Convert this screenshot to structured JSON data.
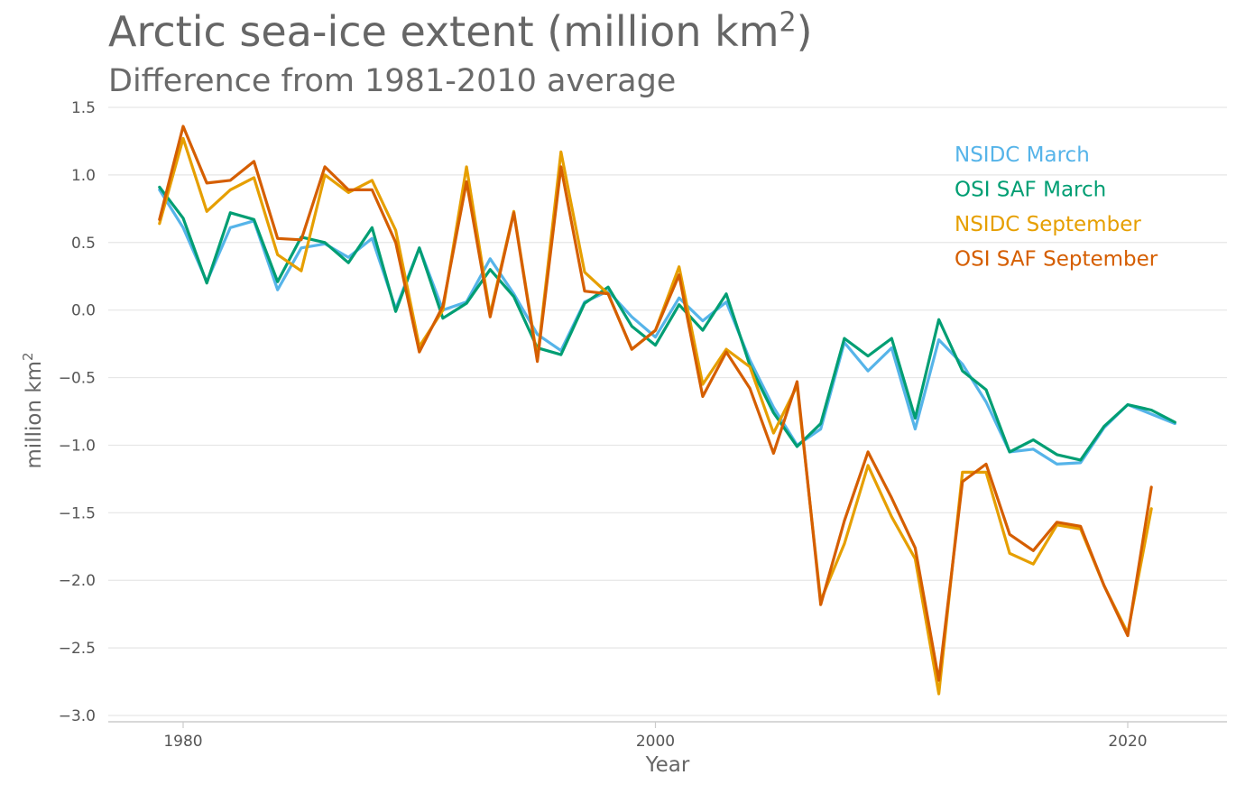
{
  "title_main": "Arctic sea-ice extent (million km",
  "title_sup": "2",
  "title_end": ")",
  "subtitle": "Difference from 1981-2010 average",
  "chart_data": {
    "type": "line",
    "title": "Arctic sea-ice extent (million km2)",
    "subtitle": "Difference from 1981-2010 average",
    "xlabel": "Year",
    "ylabel_main": "million km",
    "ylabel_sup": "2",
    "xlim": [
      1977,
      2024
    ],
    "ylim": [
      -3.0,
      1.5
    ],
    "xticks": [
      1980,
      2000,
      2020
    ],
    "xtick_labels": [
      "1980",
      "2000",
      "2020"
    ],
    "yticks": [
      1.5,
      1.0,
      0.5,
      0.0,
      -0.5,
      -1.0,
      -1.5,
      -2.0,
      -2.5,
      -3.0
    ],
    "ytick_labels": [
      "1.5",
      "1.0",
      "0.5",
      "0.0",
      "−0.5",
      "−1.0",
      "−1.5",
      "−2.0",
      "−2.5",
      "−3.0"
    ],
    "grid": "horizontal",
    "legend": "top-right",
    "series": [
      {
        "name": "NSIDC March",
        "color": "#56B4E9",
        "x": [
          1979,
          1980,
          1981,
          1982,
          1983,
          1984,
          1985,
          1986,
          1987,
          1988,
          1989,
          1990,
          1991,
          1992,
          1993,
          1994,
          1995,
          1996,
          1997,
          1998,
          1999,
          2000,
          2001,
          2002,
          2003,
          2004,
          2005,
          2006,
          2007,
          2008,
          2009,
          2010,
          2011,
          2012,
          2013,
          2014,
          2015,
          2016,
          2017,
          2018,
          2019,
          2020,
          2021,
          2022
        ],
        "y": [
          0.89,
          0.61,
          0.21,
          0.61,
          0.66,
          0.15,
          0.46,
          0.49,
          0.39,
          0.53,
          0.01,
          0.46,
          0.0,
          0.06,
          0.38,
          0.12,
          -0.18,
          -0.3,
          0.06,
          0.14,
          -0.05,
          -0.2,
          0.09,
          -0.08,
          0.06,
          -0.37,
          -0.72,
          -1.0,
          -0.88,
          -0.24,
          -0.45,
          -0.28,
          -0.88,
          -0.22,
          -0.4,
          -0.68,
          -1.05,
          -1.03,
          -1.14,
          -1.13,
          -0.87,
          -0.7,
          -0.77,
          -0.84
        ]
      },
      {
        "name": "OSI SAF March",
        "color": "#009E73",
        "x": [
          1979,
          1980,
          1981,
          1982,
          1983,
          1984,
          1985,
          1986,
          1987,
          1988,
          1989,
          1990,
          1991,
          1992,
          1993,
          1994,
          1995,
          1996,
          1997,
          1998,
          1999,
          2000,
          2001,
          2002,
          2003,
          2004,
          2005,
          2006,
          2007,
          2008,
          2009,
          2010,
          2011,
          2012,
          2013,
          2014,
          2015,
          2016,
          2017,
          2018,
          2019,
          2020,
          2021,
          2022
        ],
        "y": [
          0.91,
          0.68,
          0.2,
          0.72,
          0.67,
          0.21,
          0.54,
          0.5,
          0.35,
          0.61,
          -0.01,
          0.46,
          -0.06,
          0.05,
          0.3,
          0.1,
          -0.28,
          -0.33,
          0.05,
          0.17,
          -0.12,
          -0.26,
          0.04,
          -0.15,
          0.12,
          -0.41,
          -0.76,
          -1.01,
          -0.84,
          -0.21,
          -0.34,
          -0.21,
          -0.8,
          -0.07,
          -0.45,
          -0.59,
          -1.05,
          -0.96,
          -1.07,
          -1.11,
          -0.86,
          -0.7,
          -0.74,
          -0.83
        ]
      },
      {
        "name": "NSIDC September",
        "color": "#E69F00",
        "x": [
          1979,
          1980,
          1981,
          1982,
          1983,
          1984,
          1985,
          1986,
          1987,
          1988,
          1989,
          1990,
          1991,
          1992,
          1993,
          1994,
          1995,
          1996,
          1997,
          1998,
          1999,
          2000,
          2001,
          2002,
          2003,
          2004,
          2005,
          2006,
          2007,
          2008,
          2009,
          2010,
          2011,
          2012,
          2013,
          2014,
          2015,
          2016,
          2017,
          2018,
          2019,
          2020,
          2021
        ],
        "y": [
          0.64,
          1.27,
          0.73,
          0.89,
          0.98,
          0.41,
          0.29,
          1.0,
          0.87,
          0.96,
          0.59,
          -0.27,
          0.0,
          1.06,
          -0.03,
          0.73,
          -0.36,
          1.17,
          0.28,
          0.12,
          -0.29,
          -0.15,
          0.32,
          -0.55,
          -0.29,
          -0.42,
          -0.91,
          -0.56,
          -2.15,
          -1.73,
          -1.15,
          -1.53,
          -1.84,
          -2.84,
          -1.2,
          -1.2,
          -1.8,
          -1.88,
          -1.59,
          -1.62,
          -2.04,
          -2.39,
          -1.47
        ]
      },
      {
        "name": "OSI SAF September",
        "color": "#D55E00",
        "x": [
          1979,
          1980,
          1981,
          1982,
          1983,
          1984,
          1985,
          1986,
          1987,
          1988,
          1989,
          1990,
          1991,
          1992,
          1993,
          1994,
          1995,
          1996,
          1997,
          1998,
          1999,
          2000,
          2001,
          2002,
          2003,
          2004,
          2005,
          2006,
          2007,
          2008,
          2009,
          2010,
          2011,
          2012,
          2013,
          2014,
          2015,
          2016,
          2017,
          2018,
          2019,
          2020,
          2021
        ],
        "y": [
          0.67,
          1.36,
          0.94,
          0.96,
          1.1,
          0.53,
          0.52,
          1.06,
          0.89,
          0.89,
          0.5,
          -0.31,
          0.03,
          0.95,
          -0.05,
          0.72,
          -0.38,
          1.06,
          0.14,
          0.12,
          -0.29,
          -0.15,
          0.26,
          -0.64,
          -0.31,
          -0.58,
          -1.06,
          -0.53,
          -2.18,
          -1.56,
          -1.05,
          -1.39,
          -1.76,
          -2.74,
          -1.27,
          -1.14,
          -1.66,
          -1.78,
          -1.57,
          -1.6,
          -2.04,
          -2.41,
          -1.31
        ]
      }
    ]
  }
}
